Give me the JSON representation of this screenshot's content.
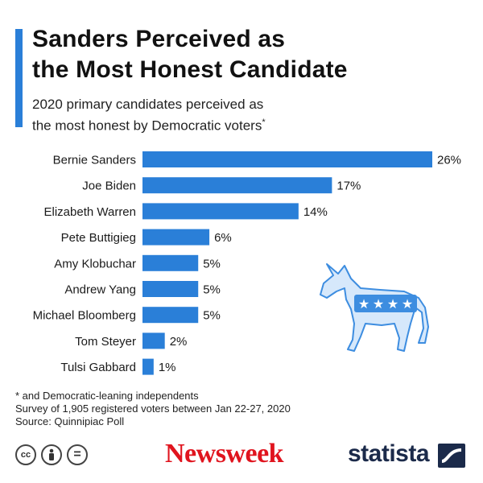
{
  "header": {
    "title_line1": "Sanders Perceived as",
    "title_line2": "the Most Honest Candidate",
    "subtitle_line1": "2020 primary candidates perceived as",
    "subtitle_line2": "the most honest by Democratic voters",
    "subtitle_mark": "*"
  },
  "chart_data": {
    "type": "bar",
    "orientation": "horizontal",
    "categories": [
      "Bernie Sanders",
      "Joe Biden",
      "Elizabeth Warren",
      "Pete Buttigieg",
      "Amy Klobuchar",
      "Andrew Yang",
      "Michael Bloomberg",
      "Tom Steyer",
      "Tulsi Gabbard"
    ],
    "values": [
      26,
      17,
      14,
      6,
      5,
      5,
      5,
      2,
      1
    ],
    "labels": [
      "26%",
      "17%",
      "14%",
      "6%",
      "5%",
      "5%",
      "5%",
      "2%",
      "1%"
    ],
    "unit": "%",
    "bar_color": "#2a7fd8",
    "grid": false
  },
  "footer": {
    "note1": "* and Democratic-leaning independents",
    "note2": "Survey of 1,905 registered voters between Jan 22-27, 2020",
    "note3": "Source: Quinnipiac Poll",
    "license_icons": [
      "creative-commons-icon",
      "attribution-icon",
      "no-derivatives-icon"
    ],
    "cc_label": "cc",
    "nd_label": "="
  },
  "brands": {
    "newsweek": "Newsweek",
    "statista": "statista"
  }
}
